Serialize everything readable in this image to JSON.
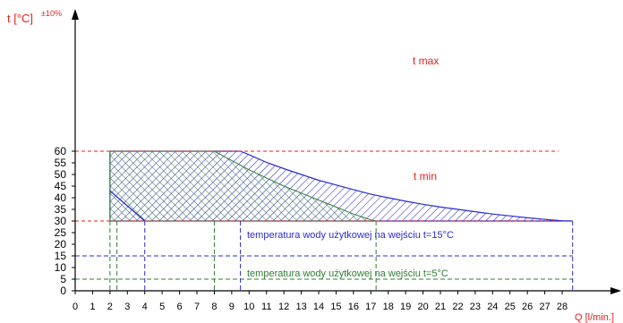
{
  "chart_data": {
    "type": "area",
    "y_axis_label": "t [°C]",
    "y_axis_tolerance": "±10%",
    "x_axis_label": "Q [l/min.]",
    "x_ticks": [
      0,
      1,
      2,
      3,
      4,
      5,
      6,
      7,
      8,
      9,
      10,
      11,
      12,
      13,
      14,
      15,
      16,
      17,
      18,
      19,
      20,
      21,
      22,
      23,
      24,
      25,
      26,
      27,
      28
    ],
    "y_ticks": [
      0,
      5,
      10,
      15,
      20,
      25,
      30,
      35,
      40,
      45,
      50,
      55,
      60
    ],
    "xlim": [
      0,
      29
    ],
    "ylim": [
      0,
      60
    ],
    "grid": false,
    "t_max": {
      "label": "t max",
      "value": 60
    },
    "t_min": {
      "label": "t min",
      "value": 30
    },
    "inlet_15": {
      "label": "temperatura wody użytkowej na wejściu t=15°C",
      "value": 15,
      "color": "#2b2bd6",
      "area": [
        [
          2,
          30
        ],
        [
          2,
          60
        ],
        [
          9.5,
          60
        ],
        [
          10,
          58.5
        ],
        [
          11,
          55.2
        ],
        [
          12,
          52.5
        ],
        [
          13,
          50
        ],
        [
          14,
          47.5
        ],
        [
          15,
          45.5
        ],
        [
          16,
          43.5
        ],
        [
          17,
          41.5
        ],
        [
          18,
          40
        ],
        [
          19,
          38.5
        ],
        [
          20,
          37.2
        ],
        [
          21,
          36
        ],
        [
          22,
          35
        ],
        [
          23,
          34
        ],
        [
          24,
          33
        ],
        [
          25,
          32.2
        ],
        [
          26,
          31.4
        ],
        [
          27,
          30.7
        ],
        [
          28,
          30.1
        ],
        [
          28.6,
          30
        ]
      ],
      "drop_lines_x": [
        4,
        9.5,
        28.6
      ]
    },
    "inlet_5": {
      "label": "temperatura wody użytkowej na wejściu t=5°C",
      "value": 5,
      "color": "#2e7d32",
      "area": [
        [
          2,
          30
        ],
        [
          2,
          43
        ],
        [
          4,
          30
        ]
      ],
      "area_upper": [
        [
          2,
          60
        ],
        [
          8,
          60
        ],
        [
          9,
          56
        ],
        [
          10,
          52
        ],
        [
          11,
          48.5
        ],
        [
          12,
          45
        ],
        [
          13,
          42
        ],
        [
          14,
          39
        ],
        [
          15,
          36
        ],
        [
          16,
          33
        ],
        [
          17,
          30.5
        ],
        [
          17.3,
          30
        ]
      ],
      "drop_lines_x": [
        2,
        2.4,
        8,
        17.3
      ]
    },
    "colors": {
      "axis": "#000000",
      "limit_lines": "#e02020",
      "limit_labels": "#e02020",
      "blue": "#2b2bd6",
      "green": "#2e7d32"
    }
  }
}
